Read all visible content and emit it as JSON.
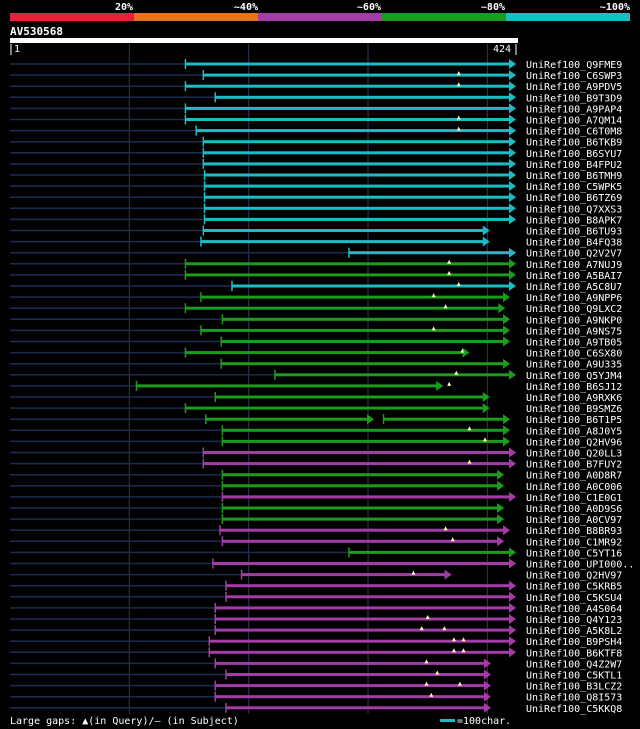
{
  "legend": {
    "labels": [
      "20%",
      "~40%",
      "~60%",
      "~80%",
      "~100%"
    ],
    "colors": [
      "#e8203c",
      "#e8741c",
      "#a43ca8",
      "#1c9c1c",
      "#1cbcc4"
    ]
  },
  "query": {
    "name": "AV530568",
    "start": "1",
    "end": "424",
    "length": 424
  },
  "alignments": [
    {
      "name": "UniRef100_Q9FME9",
      "start": 147,
      "end": 424,
      "bin": 4,
      "marks": [],
      "g": 0
    },
    {
      "name": "UniRef100_C6SWP3",
      "start": 162,
      "end": 424,
      "bin": 4,
      "marks": [
        376
      ],
      "g": 0
    },
    {
      "name": "UniRef100_A9PDV5",
      "start": 147,
      "end": 424,
      "bin": 4,
      "marks": [
        376
      ],
      "g": 0
    },
    {
      "name": "UniRef100_B9T3D9",
      "start": 172,
      "end": 424,
      "bin": 4,
      "marks": [],
      "g": 0
    },
    {
      "name": "UniRef100_A9PAP4",
      "start": 147,
      "end": 424,
      "bin": 4,
      "marks": [],
      "g": 0
    },
    {
      "name": "UniRef100_A7QM14",
      "start": 147,
      "end": 424,
      "bin": 4,
      "marks": [
        376
      ],
      "g": 0
    },
    {
      "name": "UniRef100_C6T0M8",
      "start": 156,
      "end": 424,
      "bin": 4,
      "marks": [
        376
      ],
      "g": 0
    },
    {
      "name": "UniRef100_B6TKB9",
      "start": 162,
      "end": 424,
      "bin": 4,
      "marks": [],
      "g": 0
    },
    {
      "name": "UniRef100_B6SYU7",
      "start": 162,
      "end": 424,
      "bin": 4,
      "marks": [],
      "g": 0
    },
    {
      "name": "UniRef100_B4FPU2",
      "start": 162,
      "end": 424,
      "bin": 4,
      "marks": [],
      "g": 0
    },
    {
      "name": "UniRef100_B6TMH9",
      "start": 163,
      "end": 424,
      "bin": 4,
      "marks": [],
      "g": 0
    },
    {
      "name": "UniRef100_C5WPK5",
      "start": 163,
      "end": 424,
      "bin": 4,
      "marks": [],
      "g": 0
    },
    {
      "name": "UniRef100_B6TZ69",
      "start": 163,
      "end": 424,
      "bin": 4,
      "marks": [],
      "g": 0
    },
    {
      "name": "UniRef100_Q7XXS3",
      "start": 163,
      "end": 424,
      "bin": 4,
      "marks": [],
      "g": 0
    },
    {
      "name": "UniRef100_B8APK7",
      "start": 163,
      "end": 424,
      "bin": 4,
      "marks": [],
      "g": 0
    },
    {
      "name": "UniRef100_B6TU93",
      "start": 162,
      "end": 402,
      "bin": 4,
      "marks": [],
      "g": 0
    },
    {
      "name": "UniRef100_B4FQ38",
      "start": 160,
      "end": 402,
      "bin": 4,
      "marks": [],
      "g": 0
    },
    {
      "name": "UniRef100_Q2V2V7",
      "start": 284,
      "end": 424,
      "bin": 4,
      "marks": [],
      "g": 0
    },
    {
      "name": "UniRef100_A7NUJ9",
      "start": 147,
      "end": 424,
      "bin": 3,
      "marks": [
        368
      ],
      "g": 0
    },
    {
      "name": "UniRef100_A5BAI7",
      "start": 147,
      "end": 424,
      "bin": 3,
      "marks": [
        368
      ],
      "g": 0
    },
    {
      "name": "UniRef100_A5C8U7",
      "start": 186,
      "end": 424,
      "bin": 4,
      "marks": [
        376
      ],
      "g": 0
    },
    {
      "name": "UniRef100_A9NPP6",
      "start": 160,
      "end": 419,
      "bin": 3,
      "marks": [
        355
      ],
      "g": 0
    },
    {
      "name": "UniRef100_Q9LXC2",
      "start": 147,
      "end": 415,
      "bin": 3,
      "marks": [
        365
      ],
      "g": 0
    },
    {
      "name": "UniRef100_A9NKP0",
      "start": 178,
      "end": 419,
      "bin": 3,
      "marks": [],
      "g": 0
    },
    {
      "name": "UniRef100_A9NS75",
      "start": 160,
      "end": 419,
      "bin": 3,
      "marks": [
        355
      ],
      "g": 0
    },
    {
      "name": "UniRef100_A9TB05",
      "start": 177,
      "end": 419,
      "bin": 3,
      "marks": [],
      "g": 0
    },
    {
      "name": "UniRef100_C6SX80",
      "start": 147,
      "end": 385,
      "bin": 3,
      "marks": [
        379
      ],
      "g": 0
    },
    {
      "name": "UniRef100_A9U335",
      "start": 177,
      "end": 419,
      "bin": 3,
      "marks": [],
      "g": 0
    },
    {
      "name": "UniRef100_Q5YJM4",
      "start": 222,
      "end": 424,
      "bin": 3,
      "marks": [
        374
      ],
      "g": 0
    },
    {
      "name": "UniRef100_B6SJ12",
      "start": 106,
      "end": 363,
      "bin": 3,
      "marks": [
        368
      ],
      "g": 0
    },
    {
      "name": "UniRef100_A9RXK6",
      "start": 172,
      "end": 402,
      "bin": 3,
      "marks": [],
      "g": 0
    },
    {
      "name": "UniRef100_B9SMZ6",
      "start": 147,
      "end": 402,
      "bin": 3,
      "marks": [],
      "g": 0
    },
    {
      "name": "UniRef100_B6T1P5",
      "start": 164,
      "end": 419,
      "bin": 3,
      "marks": [],
      "g": [
        305,
        313
      ]
    },
    {
      "name": "UniRef100_A8J0Y5",
      "start": 178,
      "end": 419,
      "bin": 3,
      "marks": [
        385
      ],
      "g": 0
    },
    {
      "name": "UniRef100_Q2HV96",
      "start": 178,
      "end": 419,
      "bin": 3,
      "marks": [
        398
      ],
      "g": 0
    },
    {
      "name": "UniRef100_Q20LL3",
      "start": 162,
      "end": 424,
      "bin": 2,
      "marks": [],
      "g": 0
    },
    {
      "name": "UniRef100_B7FUY2",
      "start": 162,
      "end": 424,
      "bin": 2,
      "marks": [
        385
      ],
      "g": 0
    },
    {
      "name": "UniRef100_A0D8R7",
      "start": 178,
      "end": 414,
      "bin": 3,
      "marks": [],
      "g": 0
    },
    {
      "name": "UniRef100_A0C006",
      "start": 178,
      "end": 414,
      "bin": 3,
      "marks": [],
      "g": 0
    },
    {
      "name": "UniRef100_C1E0G1",
      "start": 178,
      "end": 424,
      "bin": 2,
      "marks": [],
      "g": 0
    },
    {
      "name": "UniRef100_A0D9S6",
      "start": 178,
      "end": 414,
      "bin": 3,
      "marks": [],
      "g": 0
    },
    {
      "name": "UniRef100_A0CV97",
      "start": 178,
      "end": 414,
      "bin": 3,
      "marks": [],
      "g": 0
    },
    {
      "name": "UniRef100_B8BR93",
      "start": 176,
      "end": 419,
      "bin": 2,
      "marks": [
        365
      ],
      "g": 0
    },
    {
      "name": "UniRef100_C1MR92",
      "start": 178,
      "end": 414,
      "bin": 2,
      "marks": [
        371
      ],
      "g": 0
    },
    {
      "name": "UniRef100_C5YT16",
      "start": 284,
      "end": 424,
      "bin": 3,
      "marks": [],
      "g": 0
    },
    {
      "name": "UniRef100_UPI000..",
      "start": 170,
      "end": 424,
      "bin": 2,
      "marks": [],
      "g": 0
    },
    {
      "name": "UniRef100_Q2HV97",
      "start": 194,
      "end": 370,
      "bin": 2,
      "marks": [
        338
      ],
      "g": 0
    },
    {
      "name": "UniRef100_C5KRB5",
      "start": 181,
      "end": 424,
      "bin": 2,
      "marks": [],
      "g": 0
    },
    {
      "name": "UniRef100_C5KSU4",
      "start": 181,
      "end": 424,
      "bin": 2,
      "marks": [],
      "g": 0
    },
    {
      "name": "UniRef100_A4S064",
      "start": 172,
      "end": 424,
      "bin": 2,
      "marks": [],
      "g": 0
    },
    {
      "name": "UniRef100_Q4Y123",
      "start": 172,
      "end": 424,
      "bin": 2,
      "marks": [
        350
      ],
      "g": 0
    },
    {
      "name": "UniRef100_A5K8L2",
      "start": 172,
      "end": 424,
      "bin": 2,
      "marks": [
        345,
        364
      ],
      "g": 0
    },
    {
      "name": "UniRef100_B9PSH4",
      "start": 167,
      "end": 424,
      "bin": 2,
      "marks": [
        372,
        380
      ],
      "g": 0
    },
    {
      "name": "UniRef100_B6KTF8",
      "start": 167,
      "end": 424,
      "bin": 2,
      "marks": [
        372,
        380
      ],
      "g": 0
    },
    {
      "name": "UniRef100_Q4Z2W7",
      "start": 172,
      "end": 403,
      "bin": 2,
      "marks": [
        349
      ],
      "g": 0
    },
    {
      "name": "UniRef100_C5KTL1",
      "start": 181,
      "end": 403,
      "bin": 2,
      "marks": [
        358
      ],
      "g": 0
    },
    {
      "name": "UniRef100_B3LCZ2",
      "start": 172,
      "end": 403,
      "bin": 2,
      "marks": [
        349,
        377
      ],
      "g": 0
    },
    {
      "name": "UniRef100_Q8I573",
      "start": 172,
      "end": 403,
      "bin": 2,
      "marks": [
        353
      ],
      "g": 0
    },
    {
      "name": "UniRef100_C5KKQ8",
      "start": 181,
      "end": 403,
      "bin": 2,
      "marks": [],
      "g": 0
    }
  ],
  "footer": {
    "gaps_text": "Large gaps: ▲(in Query)/– (in Subject)",
    "scale_text": "=100char."
  }
}
